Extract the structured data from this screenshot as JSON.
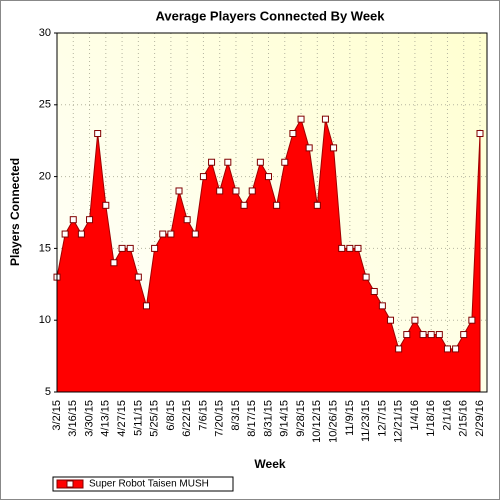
{
  "chart_data": {
    "type": "area",
    "title": "Average Players Connected By Week",
    "x_label": "Week",
    "y_label": "Players Connected",
    "categories": [
      "3/2/15",
      null,
      "3/16/15",
      null,
      "3/30/15",
      null,
      "4/13/15",
      null,
      "4/27/15",
      null,
      "5/11/15",
      null,
      "5/25/15",
      null,
      "6/8/15",
      null,
      "6/22/15",
      null,
      "7/6/15",
      null,
      "7/20/15",
      null,
      "8/3/15",
      null,
      "8/17/15",
      null,
      "8/31/15",
      null,
      "9/14/15",
      null,
      "9/28/15",
      null,
      "10/12/15",
      null,
      "10/26/15",
      null,
      "11/9/15",
      null,
      "11/23/15",
      null,
      "12/7/15",
      null,
      "12/21/15",
      null,
      "1/4/16",
      null,
      "1/18/16",
      null,
      "2/1/16",
      null,
      "2/15/16",
      null,
      "2/29/16"
    ],
    "series": [
      {
        "name": "Super Robot Taisen MUSH",
        "color": "#ff0000",
        "values": [
          13,
          16,
          17,
          16,
          17,
          23,
          18,
          14,
          15,
          15,
          13,
          11,
          15,
          16,
          16,
          19,
          17,
          16,
          20,
          21,
          19,
          21,
          19,
          18,
          19,
          21,
          20,
          18,
          21,
          23,
          24,
          22,
          18,
          24,
          22,
          15,
          15,
          15,
          13,
          12,
          11,
          10,
          8,
          9,
          10,
          9,
          9,
          9,
          8,
          8,
          9,
          10,
          23
        ]
      }
    ],
    "ylim": [
      5,
      30
    ],
    "yticks": [
      5,
      10,
      15,
      20,
      25,
      30
    ],
    "grid": true,
    "legend": "bottom-left"
  }
}
